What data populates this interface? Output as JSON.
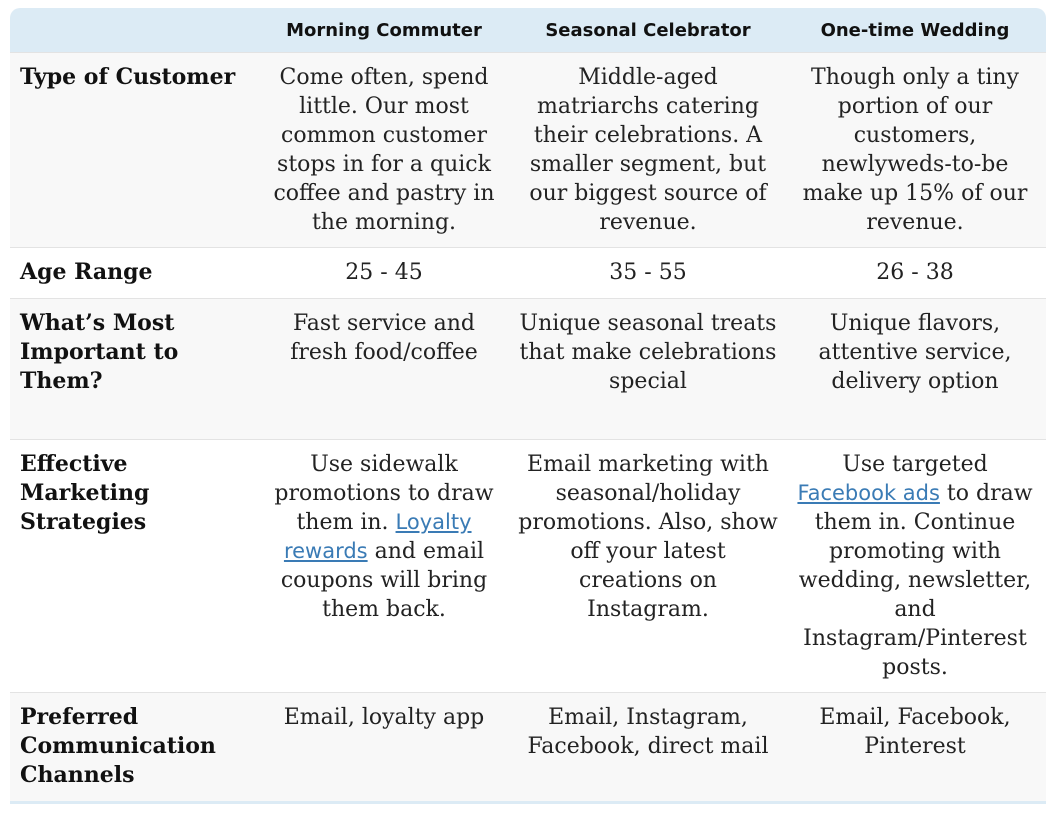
{
  "headers": [
    "",
    "Morning Commuter",
    "Seasonal Celebrator",
    "One-time Wedding"
  ],
  "rows": [
    {
      "label": "Type of Customer",
      "cells": [
        {
          "text": "Come often, spend little. Our most common customer stops in for a quick coffee and pastry in the morning."
        },
        {
          "text": "Middle-aged matriarchs catering their celebrations. A smaller segment, but our biggest source of revenue."
        },
        {
          "text": "Though only a tiny portion of our customers, newlyweds-to-be make up 15% of our revenue."
        }
      ]
    },
    {
      "label": "Age Range",
      "cells": [
        {
          "text": "25 - 45"
        },
        {
          "text": "35 - 55"
        },
        {
          "text": "26 - 38"
        }
      ]
    },
    {
      "label": "What’s Most Important to Them?",
      "cells": [
        {
          "text": "Fast service and fresh food/coffee"
        },
        {
          "text": "Unique seasonal treats that make celebrations special"
        },
        {
          "text": "Unique flavors, attentive service, delivery option"
        }
      ]
    },
    {
      "label": "Effective Marketing Strategies",
      "cells": [
        {
          "before": "Use sidewalk promotions to draw them in. ",
          "link": "Loyalty rewards",
          "after": " and email coupons will bring them back."
        },
        {
          "text": "Email marketing with seasonal/holiday promotions. Also, show off your latest creations on Instagram."
        },
        {
          "before": "Use targeted ",
          "link": "Facebook ads",
          "after": " to draw them in. Continue promoting with wedding, newsletter, and Instagram/Pinterest posts."
        }
      ]
    },
    {
      "label": "Preferred Communication Channels",
      "cells": [
        {
          "text": "Email, loyalty app"
        },
        {
          "text": "Email, Instagram, Facebook, direct mail"
        },
        {
          "text": "Email, Facebook, Pinterest"
        }
      ]
    }
  ],
  "colors": {
    "header_bg": "#dcebf5",
    "row_alt_bg": "#f8f8f8",
    "link": "#3a7bb5"
  }
}
